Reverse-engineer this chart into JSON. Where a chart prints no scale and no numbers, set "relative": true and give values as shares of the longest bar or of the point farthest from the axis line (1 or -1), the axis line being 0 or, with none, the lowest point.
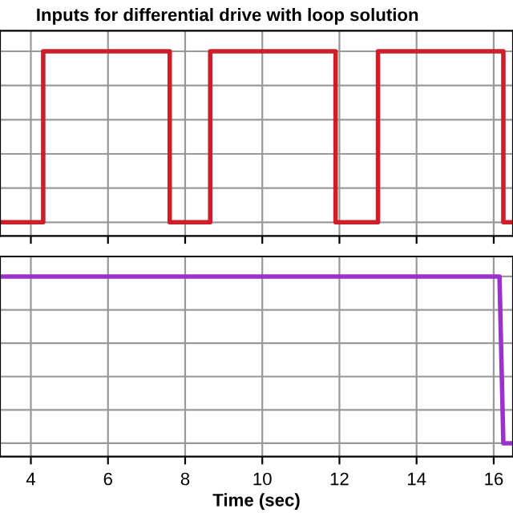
{
  "chart_data": [
    {
      "type": "step",
      "title": "Inputs for differential drive with loop solution",
      "relative": true,
      "xlim": [
        3.2,
        16.5
      ],
      "xticks": [
        4,
        6,
        8,
        10,
        12,
        14,
        16
      ],
      "tick_labels": false,
      "grid": true,
      "series": [
        {
          "color": "#cc1f2a",
          "x": [
            3.2,
            4.32,
            7.6,
            8.65,
            11.9,
            13.0,
            16.25,
            16.5
          ],
          "values": [
            0,
            1,
            0,
            1,
            0,
            1,
            0,
            0
          ]
        }
      ]
    },
    {
      "type": "step",
      "xlabel": "Time (sec)",
      "relative": true,
      "xlim": [
        3.2,
        16.5
      ],
      "xticks": [
        4,
        6,
        8,
        10,
        12,
        14,
        16
      ],
      "tick_labels": "x",
      "grid": true,
      "series": [
        {
          "color": "#9933cc",
          "type": "line",
          "x": [
            3.2,
            16.15,
            16.25,
            16.5
          ],
          "values": [
            1,
            1,
            0,
            0
          ]
        }
      ]
    }
  ]
}
